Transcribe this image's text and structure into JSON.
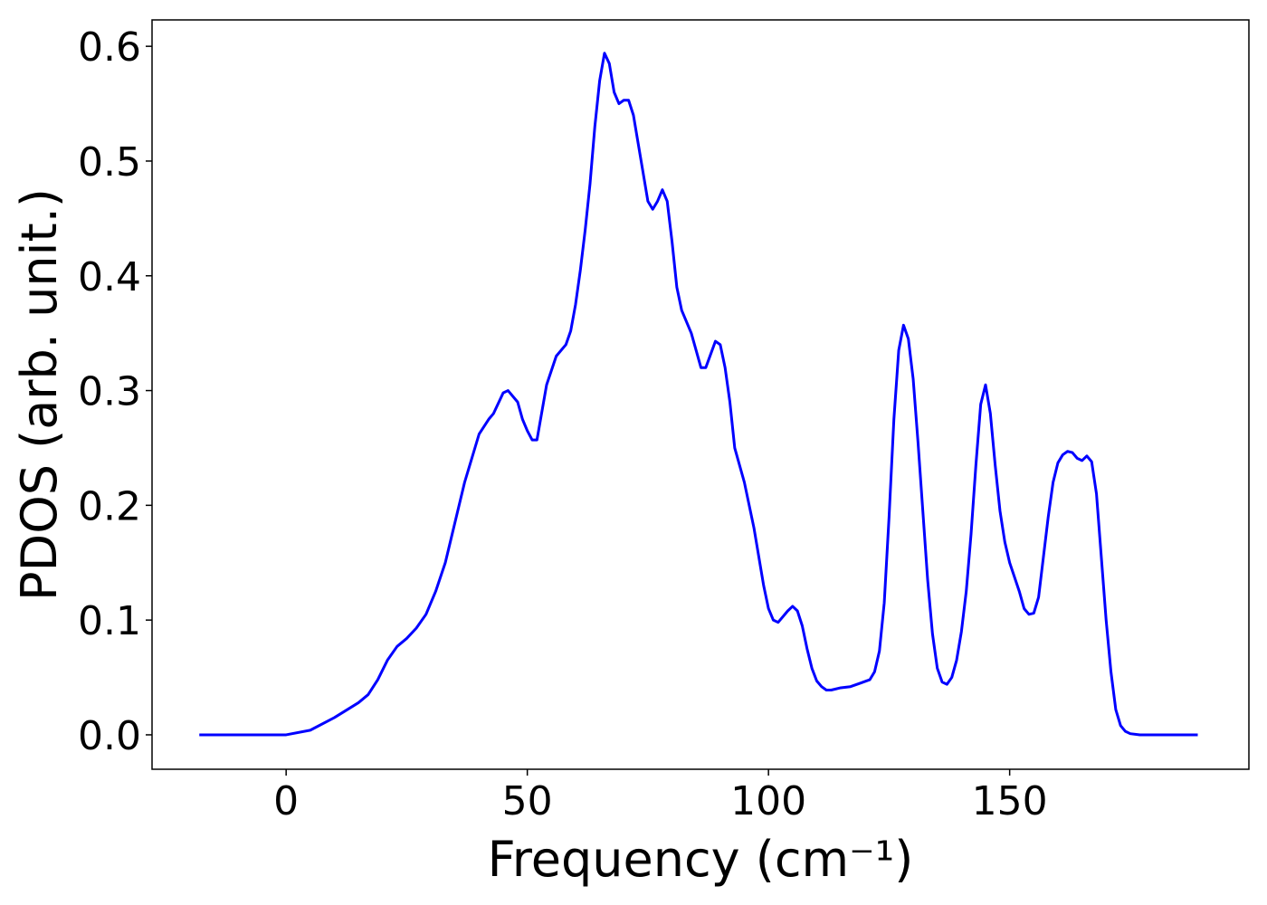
{
  "chart_data": {
    "type": "line",
    "xlabel": "Frequency (cm⁻¹)",
    "ylabel": "PDOS (arb. unit.)",
    "xlim": [
      -27.8,
      199.6
    ],
    "ylim": [
      -0.03,
      0.623
    ],
    "xticks": [
      0,
      50,
      100,
      150
    ],
    "yticks": [
      {
        "value": 0,
        "label": "0.0"
      },
      0.1,
      0.2,
      0.3,
      0.4,
      0.5,
      0.6
    ],
    "grid": false,
    "series": [
      {
        "color": "#0000ff",
        "x": [
          -18,
          0,
          5,
          10,
          15,
          17,
          19,
          21,
          23,
          25,
          27,
          29,
          31,
          33,
          35,
          37,
          39,
          40,
          42,
          43,
          45,
          46,
          48,
          49,
          50,
          51,
          52,
          54,
          56,
          58,
          59,
          60,
          61,
          62,
          63,
          64,
          65,
          66,
          67,
          68,
          69,
          70,
          71,
          72,
          73,
          74,
          75,
          76,
          77,
          78,
          79,
          80,
          81,
          82,
          84,
          86,
          87,
          89,
          90,
          91,
          92,
          93,
          95,
          97,
          99,
          100,
          101,
          102,
          104,
          105,
          106,
          107,
          108,
          109,
          110,
          111,
          112,
          113,
          115,
          117,
          119,
          121,
          122,
          123,
          124,
          125,
          126,
          127,
          128,
          129,
          130,
          131,
          132,
          133,
          134,
          135,
          136,
          137,
          138,
          139,
          140,
          141,
          142,
          143,
          144,
          145,
          146,
          147,
          148,
          149,
          150,
          152,
          153,
          154,
          155,
          156,
          157,
          158,
          159,
          160,
          161,
          162,
          163,
          164,
          165,
          166,
          167,
          168,
          169,
          170,
          171,
          172,
          173,
          174,
          175,
          177,
          189
        ],
        "values": [
          0,
          0,
          0.004,
          0.015,
          0.028,
          0.035,
          0.048,
          0.065,
          0.077,
          0.084,
          0.093,
          0.105,
          0.125,
          0.15,
          0.185,
          0.22,
          0.248,
          0.262,
          0.275,
          0.28,
          0.298,
          0.3,
          0.29,
          0.275,
          0.265,
          0.257,
          0.257,
          0.305,
          0.33,
          0.34,
          0.352,
          0.375,
          0.405,
          0.44,
          0.48,
          0.53,
          0.57,
          0.594,
          0.585,
          0.56,
          0.55,
          0.553,
          0.553,
          0.54,
          0.515,
          0.49,
          0.465,
          0.458,
          0.465,
          0.475,
          0.465,
          0.43,
          0.39,
          0.37,
          0.35,
          0.32,
          0.32,
          0.343,
          0.34,
          0.32,
          0.29,
          0.25,
          0.22,
          0.18,
          0.13,
          0.11,
          0.1,
          0.098,
          0.108,
          0.112,
          0.108,
          0.095,
          0.075,
          0.058,
          0.047,
          0.042,
          0.039,
          0.039,
          0.041,
          0.042,
          0.045,
          0.048,
          0.055,
          0.073,
          0.115,
          0.19,
          0.275,
          0.335,
          0.357,
          0.345,
          0.31,
          0.255,
          0.195,
          0.135,
          0.088,
          0.058,
          0.046,
          0.044,
          0.05,
          0.065,
          0.09,
          0.125,
          0.175,
          0.235,
          0.288,
          0.305,
          0.28,
          0.235,
          0.195,
          0.168,
          0.15,
          0.125,
          0.11,
          0.105,
          0.106,
          0.12,
          0.155,
          0.19,
          0.22,
          0.237,
          0.244,
          0.247,
          0.246,
          0.241,
          0.239,
          0.243,
          0.238,
          0.21,
          0.155,
          0.1,
          0.055,
          0.022,
          0.008,
          0.003,
          0.001,
          0,
          0
        ]
      }
    ]
  }
}
